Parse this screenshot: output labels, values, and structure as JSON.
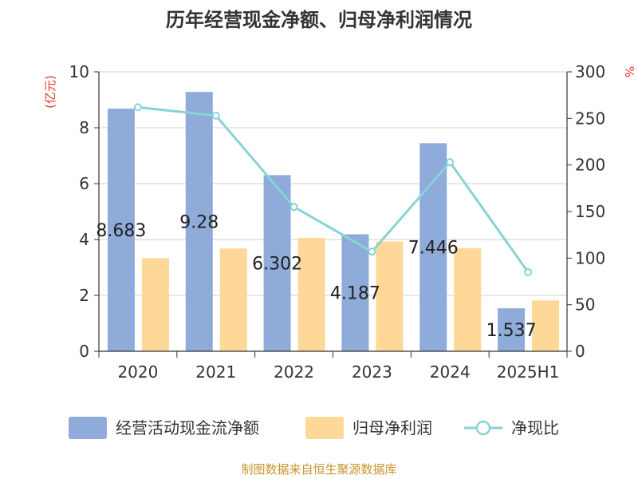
{
  "colors": {
    "bar1": "#8eabd9",
    "bar2": "#fdd899",
    "line": "#88d3d5",
    "unit": "#e8332a",
    "source": "#c9952c"
  },
  "chart_data": {
    "type": "bar",
    "title": "历年经营现金净额、归母净利润情况",
    "categories": [
      "2020",
      "2021",
      "2022",
      "2023",
      "2024",
      "2025H1"
    ],
    "y_left": {
      "label": "(亿元)",
      "ylim": [
        0,
        10
      ],
      "ticks": [
        "0",
        "2",
        "4",
        "6",
        "8",
        "10"
      ]
    },
    "y_right": {
      "label": "%",
      "ylim": [
        0,
        300
      ],
      "ticks": [
        "0",
        "50",
        "100",
        "150",
        "200",
        "250",
        "300"
      ]
    },
    "series": [
      {
        "name": "经营活动现金流净额",
        "type": "bar",
        "axis": "left",
        "values": [
          8.683,
          9.28,
          6.302,
          4.187,
          7.446,
          1.537
        ],
        "labels": [
          "8.683",
          "9.28",
          "6.302",
          "4.187",
          "7.446",
          "1.537"
        ]
      },
      {
        "name": "归母净利润",
        "type": "bar",
        "axis": "left",
        "values": [
          3.33,
          3.68,
          4.06,
          3.93,
          3.69,
          1.82
        ]
      },
      {
        "name": "净现比",
        "type": "line",
        "axis": "right",
        "values": [
          262,
          253,
          155,
          107,
          203,
          85
        ]
      }
    ],
    "grid": true,
    "legend": "bottom"
  },
  "source": "制图数据来自恒生聚源数据库"
}
